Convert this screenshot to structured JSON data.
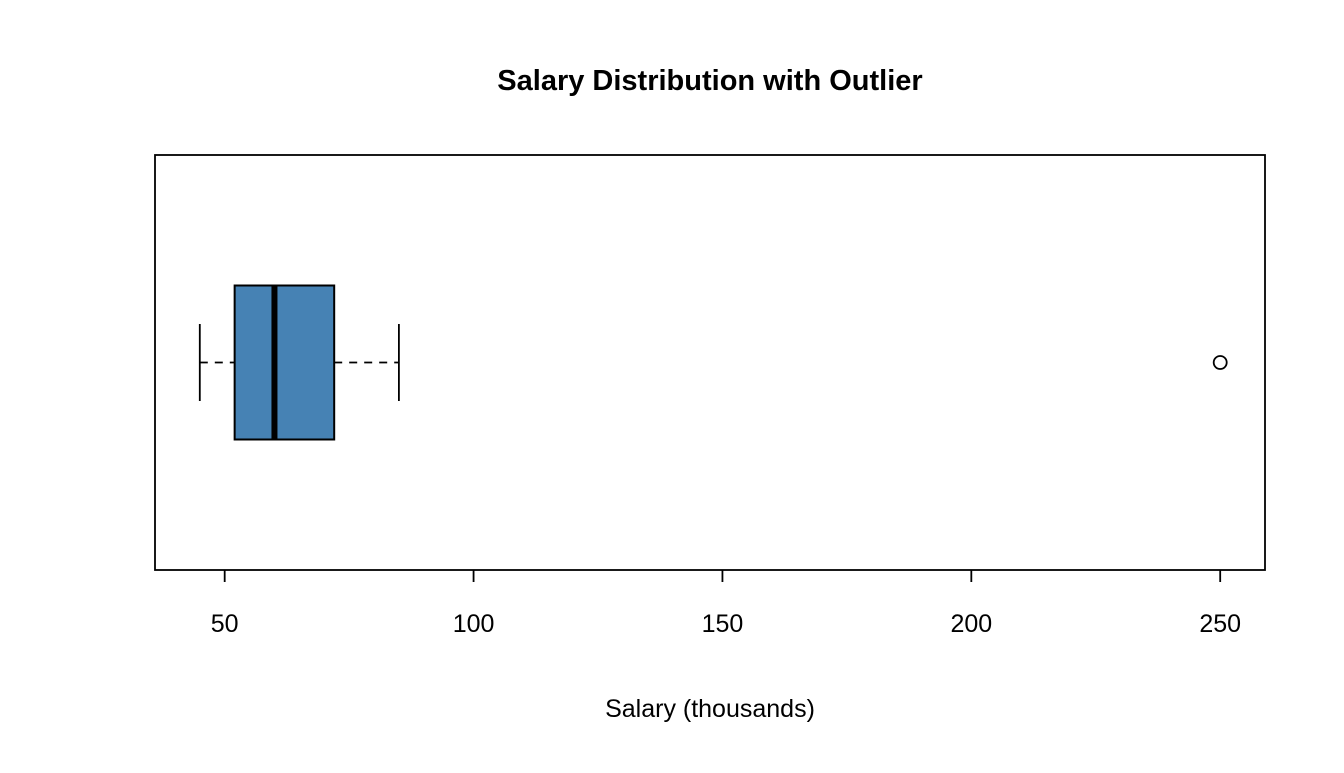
{
  "title": "Salary Distribution with Outlier",
  "chart_data": {
    "type": "boxplot",
    "orientation": "horizontal",
    "title": "Salary Distribution with Outlier",
    "xlabel": "Salary (thousands)",
    "x_ticks": [
      50,
      100,
      150,
      200,
      250
    ],
    "xlim": [
      36,
      259
    ],
    "grid": false,
    "box_fill": "#4682B4",
    "box_stroke": "#000000",
    "series": [
      {
        "name": "salary",
        "whisker_low": 45,
        "q1": 52,
        "median": 60,
        "q3": 72,
        "whisker_high": 85,
        "outliers": [
          250
        ]
      }
    ]
  },
  "colors": {
    "background": "#ffffff",
    "plot_border": "#000000",
    "box_fill": "#4682B4",
    "text": "#000000"
  }
}
